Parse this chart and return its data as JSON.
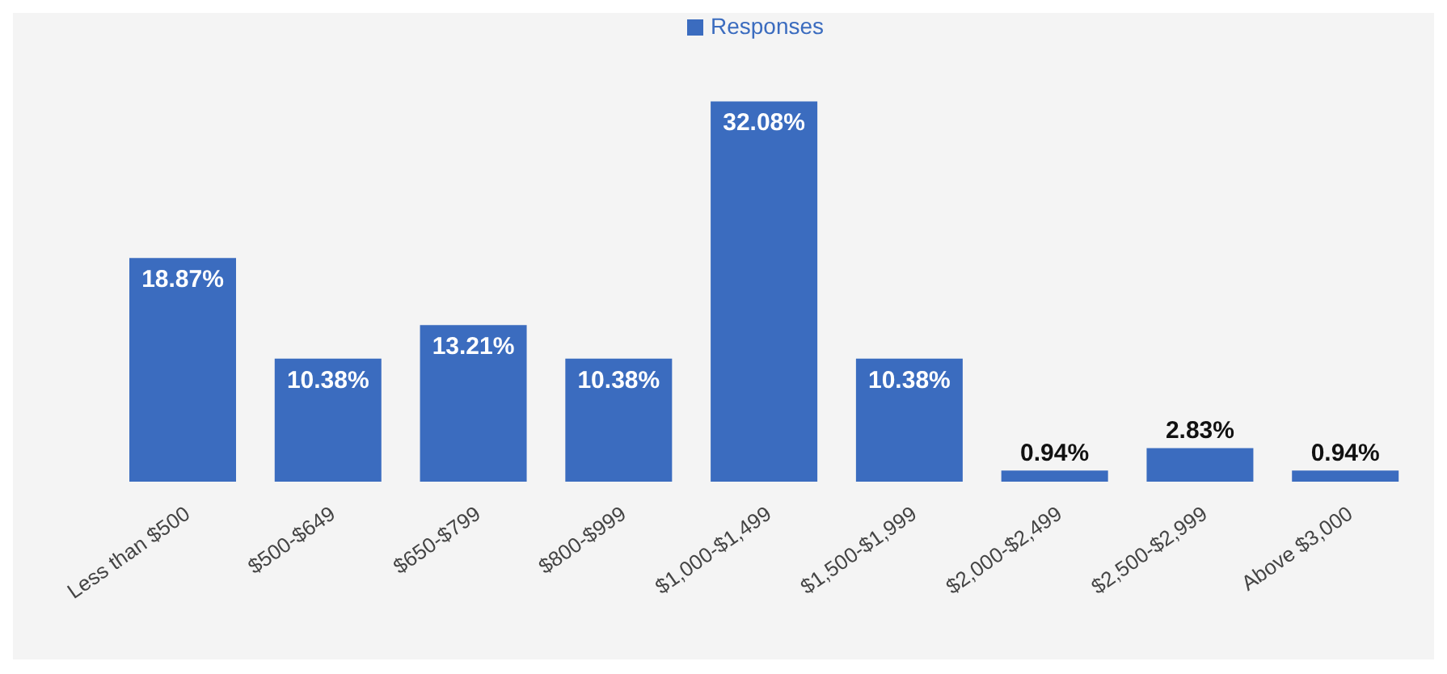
{
  "chart_data": {
    "type": "bar",
    "categories": [
      "Less than $500",
      "$500-$649",
      "$650-$799",
      "$800-$999",
      "$1,000-$1,499",
      "$1,500-$1,999",
      "$2,000-$2,499",
      "$2,500-$2,999",
      "Above $3,000"
    ],
    "series": [
      {
        "name": "Responses",
        "color": "#3b6cbf",
        "values": [
          18.87,
          10.38,
          13.21,
          10.38,
          32.08,
          10.38,
          0.94,
          2.83,
          0.94
        ],
        "value_labels": [
          "18.87%",
          "10.38%",
          "13.21%",
          "10.38%",
          "32.08%",
          "10.38%",
          "0.94%",
          "2.83%",
          "0.94%"
        ]
      }
    ],
    "legend": "top",
    "grid": false,
    "tick_labels": "x"
  }
}
